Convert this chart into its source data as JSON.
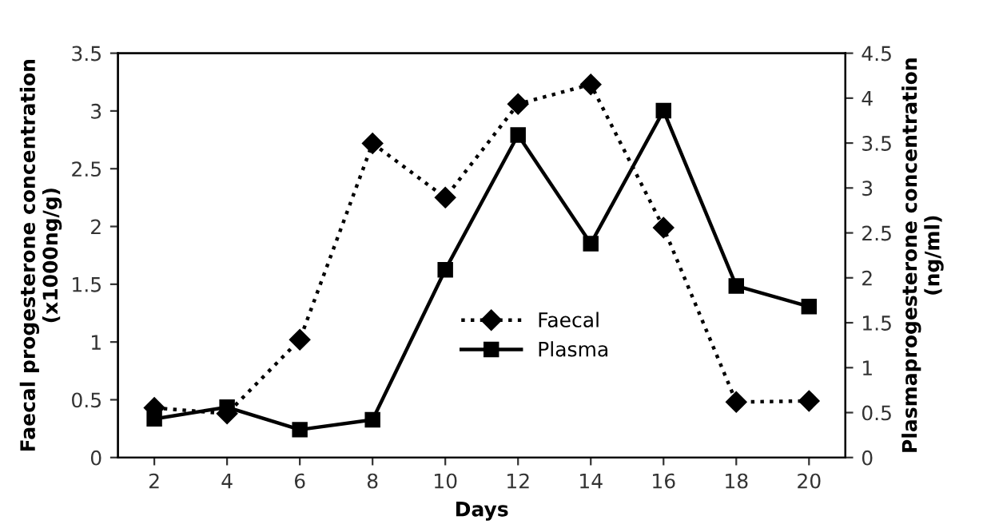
{
  "chart_data": {
    "type": "line",
    "xlabel": "Days",
    "ylabel": "Faecal progesterone concentration\n(x1000ng/g)",
    "y2label": "Plasmaprogesterone concentration\n(ng/ml)",
    "categories": [
      "2",
      "4",
      "6",
      "8",
      "10",
      "12",
      "14",
      "16",
      "18",
      "20"
    ],
    "series": [
      {
        "name": "Faecal",
        "color": "#000000",
        "marker": "diamond",
        "line_style": "dotted",
        "values": [
          0.43,
          0.38,
          1.02,
          2.72,
          2.25,
          3.06,
          3.23,
          1.99,
          0.48,
          0.49
        ]
      },
      {
        "name": "Plasma",
        "color": "#000000",
        "marker": "square",
        "line_style": "solid",
        "axis": "y2",
        "values": [
          0.43,
          0.56,
          0.31,
          0.42,
          2.09,
          3.59,
          2.38,
          3.86,
          1.91,
          1.68
        ]
      }
    ],
    "ylim": [
      0,
      3.5
    ],
    "yticks": [
      0,
      0.5,
      1,
      1.5,
      2,
      2.5,
      3,
      3.5
    ],
    "y2lim": [
      0,
      4.5
    ],
    "y2ticks": [
      0,
      0.5,
      1,
      1.5,
      2,
      2.5,
      3,
      3.5,
      4,
      4.5
    ],
    "grid": false,
    "legend": "center right"
  }
}
